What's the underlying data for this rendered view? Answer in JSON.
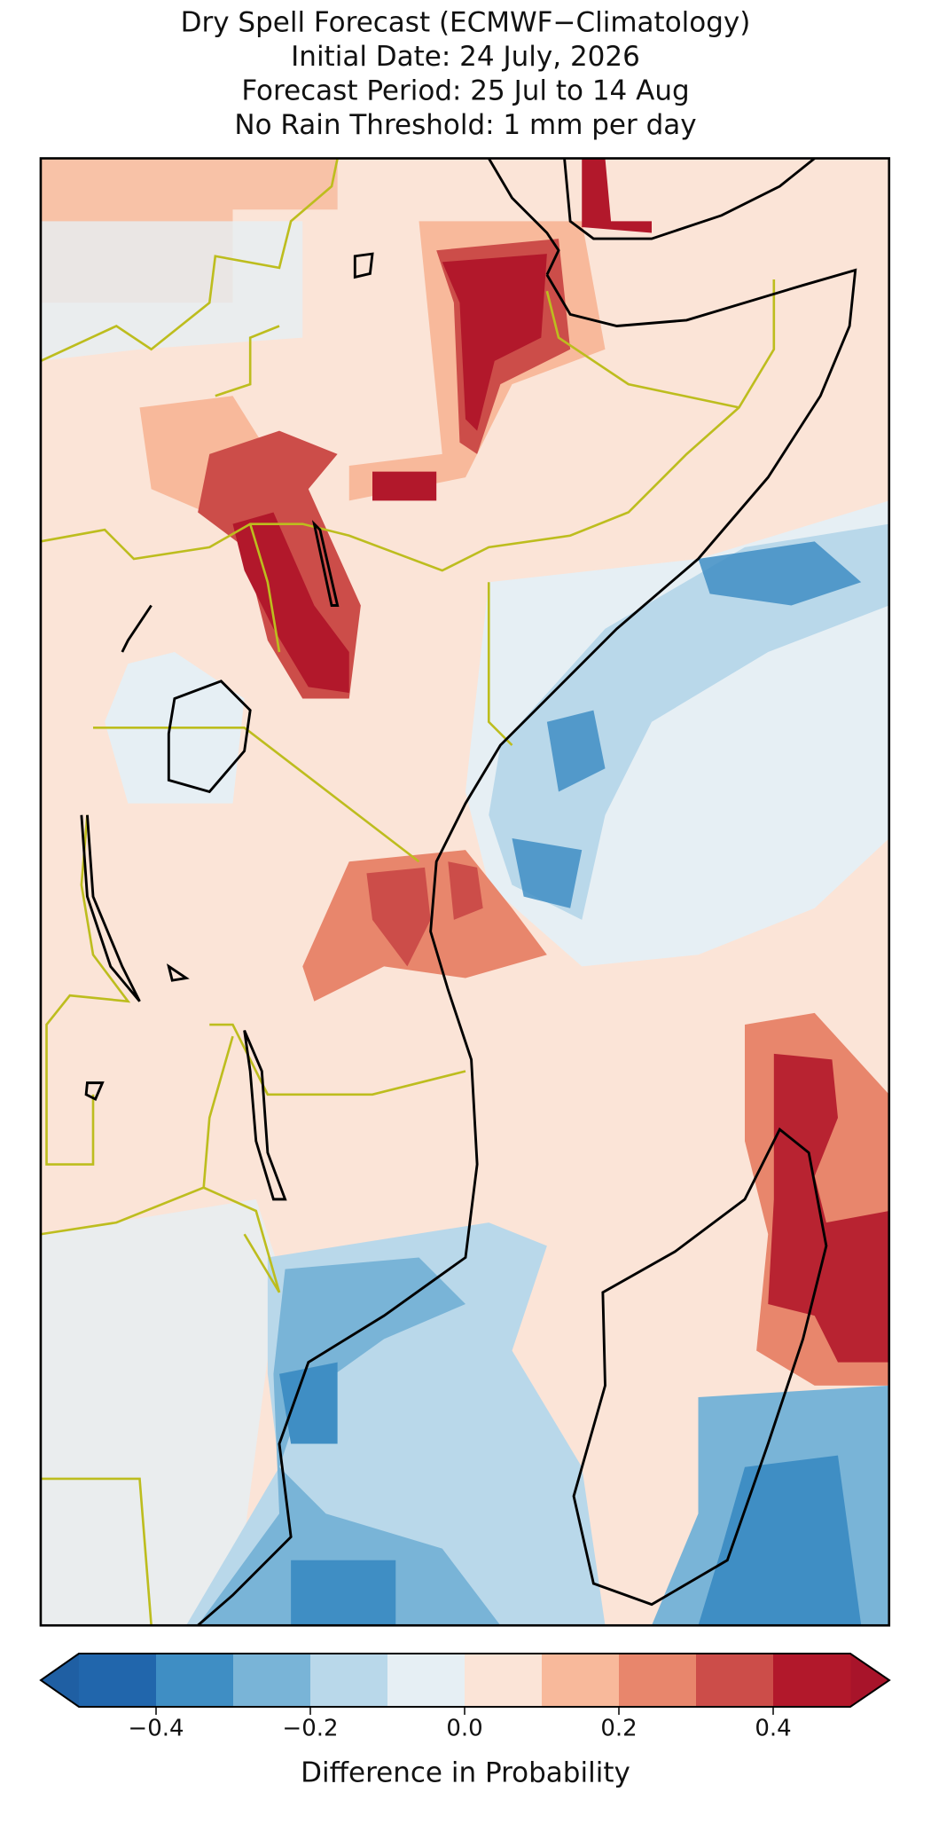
{
  "chart_data": {
    "type": "map",
    "title": [
      "Dry Spell Forecast (ECMWF−Climatology)",
      "Initial Date: 24 July, 2026",
      "Forecast Period: 25 Jul to 14 Aug",
      "No Rain Threshold: 1 mm per day"
    ],
    "colorbar": {
      "label": "Difference in Probability",
      "boundaries": [
        -0.5,
        -0.4,
        -0.3,
        -0.2,
        -0.1,
        0,
        0.1,
        0.2,
        0.3,
        0.4,
        0.5
      ],
      "colors": [
        "#2166ac",
        "#3f8ec4",
        "#79b4d7",
        "#b9d8ea",
        "#e6eff4",
        "#fbe4d7",
        "#f8b99b",
        "#e8866c",
        "#cc4d49",
        "#b2182b"
      ],
      "extend_colors": [
        "#1f5fa3",
        "#a8142a"
      ],
      "ticks": [
        {
          "value": -0.4,
          "label": "−0.4"
        },
        {
          "value": -0.2,
          "label": "−0.2"
        },
        {
          "value": 0,
          "label": "0.0"
        },
        0.2,
        0.4
      ]
    }
  }
}
